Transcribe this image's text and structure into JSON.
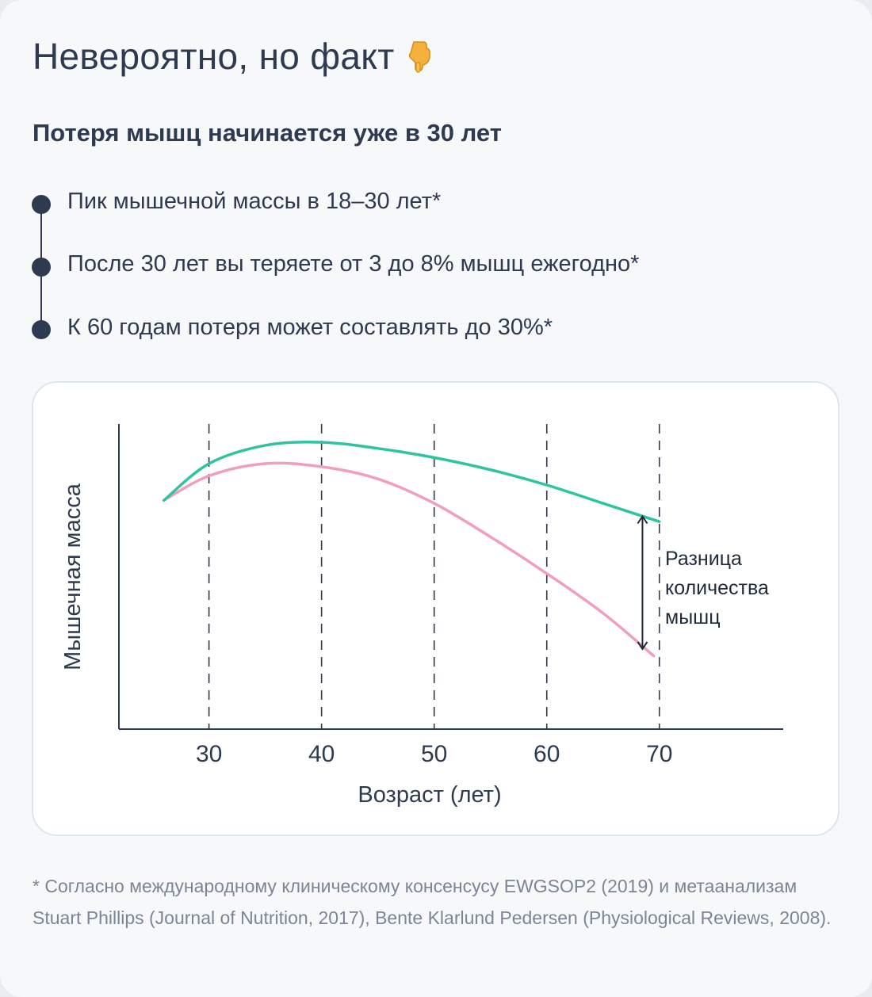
{
  "header": {
    "title": "Невероятно, но факт",
    "title_icon": "pointing-down-hand-icon",
    "subtitle": "Потеря мышц начинается уже в 30 лет"
  },
  "facts": [
    {
      "text": "Пик мышечной массы в 18–30 лет*"
    },
    {
      "text": "После 30 лет вы теряете от 3 до 8% мышц ежегодно*"
    },
    {
      "text": "К 60 годам потеря может составлять до 30%*"
    }
  ],
  "chart_data": {
    "type": "line",
    "title": "",
    "xlabel": "Возраст (лет)",
    "ylabel": "Мышечная масса",
    "xlim": [
      22,
      81
    ],
    "ylim": [
      0,
      100
    ],
    "x_ticks": [
      30,
      40,
      50,
      60,
      70
    ],
    "grid": "vertical-dashed",
    "colors": {
      "upper": "#2ec4a0",
      "lower": "#f29dbd",
      "axis": "#2d3a4f"
    },
    "series": [
      {
        "key": "upper",
        "x": [
          26,
          30,
          35,
          40,
          45,
          50,
          55,
          60,
          65,
          70
        ],
        "y": [
          75,
          87,
          93,
          94,
          92,
          89,
          85,
          80,
          74,
          68
        ]
      },
      {
        "key": "lower",
        "x": [
          26,
          30,
          35,
          40,
          45,
          50,
          55,
          60,
          65,
          69.5
        ],
        "y": [
          75,
          83,
          87,
          86,
          82,
          74,
          63,
          51,
          38,
          24
        ]
      }
    ],
    "annotation": {
      "lines": [
        "Разница",
        "количества",
        "мышц"
      ],
      "x": 68.5,
      "y_top": 70,
      "y_bottom": 26
    }
  },
  "footnote": "* Согласно международному клиническому консенсусу EWGSOP2 (2019) и метаанализам Stuart Phillips (Journal of Nutrition, 2017), Bente Klarlund Pedersen (Physiological Reviews, 2008)."
}
